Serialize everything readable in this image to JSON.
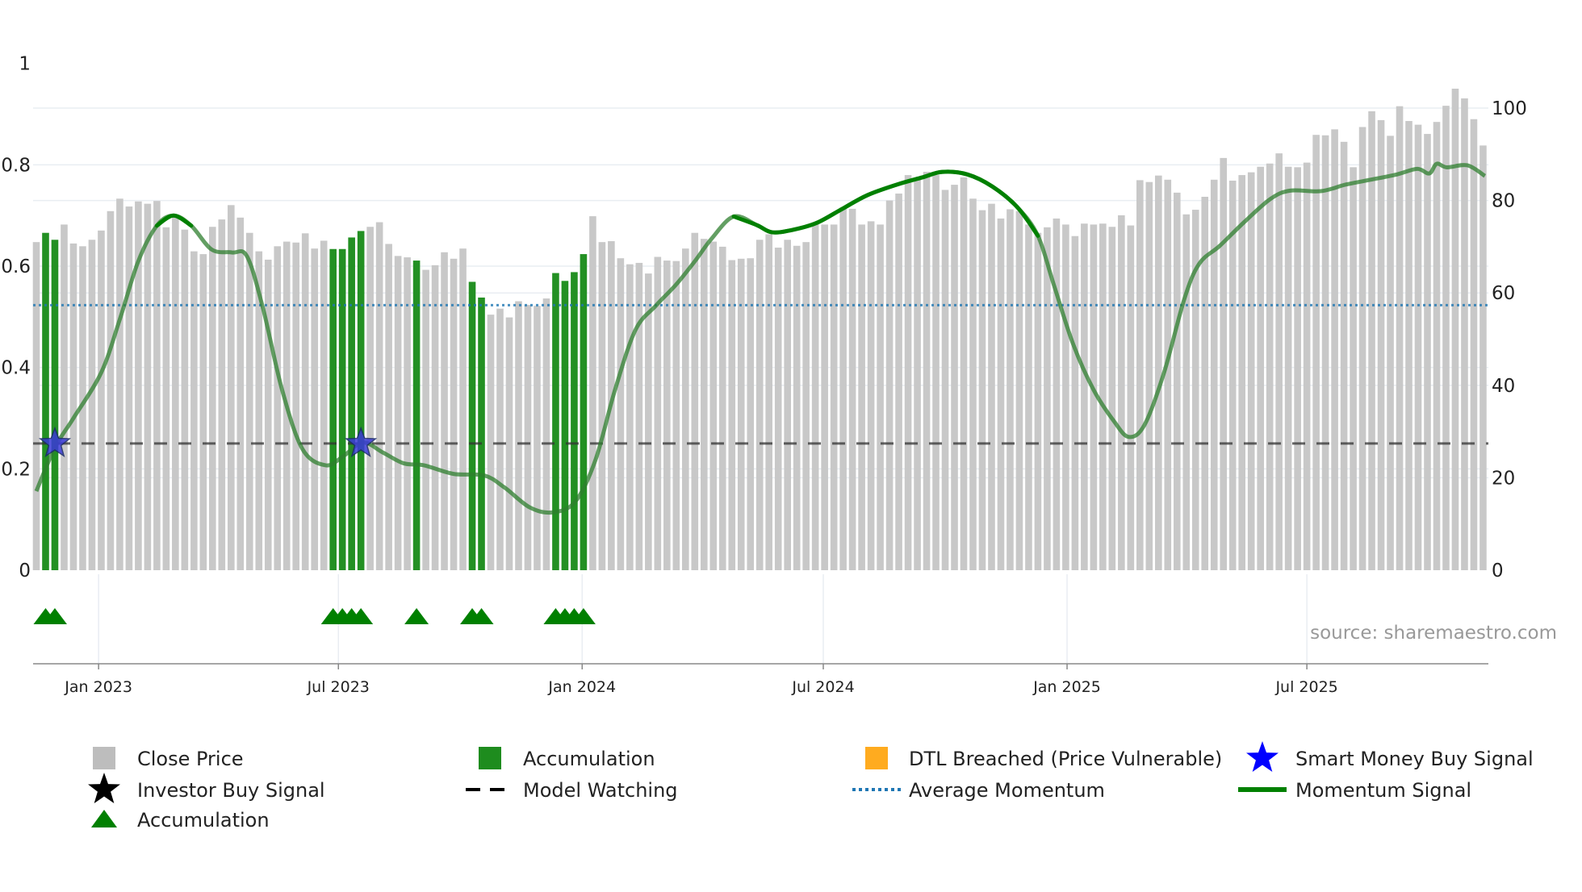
{
  "chart_data": {
    "type": "bar",
    "title": "",
    "source": "source: sharemaestro.com",
    "left_axis": {
      "range": [
        0,
        1
      ],
      "ticks": [
        "0",
        "0.2",
        "0.4",
        "0.6",
        "0.8",
        "1"
      ],
      "values": [
        0,
        0.2,
        0.4,
        0.6,
        0.8,
        1
      ]
    },
    "right_axis": {
      "range": [
        0,
        109.6
      ],
      "ticks": [
        "0",
        "20",
        "40",
        "60",
        "80",
        "100"
      ],
      "values": [
        0,
        20,
        40,
        60,
        80,
        100
      ]
    },
    "x_axis": {
      "first_week": "2022-11-15",
      "ticks": [
        {
          "label": "Jan 2023",
          "date": "2023-01-01"
        },
        {
          "label": "Jul 2023",
          "date": "2023-07-01"
        },
        {
          "label": "Jan 2024",
          "date": "2024-01-01"
        },
        {
          "label": "Jul 2024",
          "date": "2024-07-01"
        },
        {
          "label": "Jan 2025",
          "date": "2025-01-01"
        },
        {
          "label": "Jul 2025",
          "date": "2025-07-01"
        }
      ]
    },
    "close_price": [
      71,
      73,
      71.5,
      74.8,
      70.7,
      70.1,
      71.5,
      73.5,
      77.7,
      80.4,
      78.7,
      79.8,
      79.3,
      79.9,
      74.2,
      76.5,
      73.7,
      69,
      68.4,
      74.3,
      75.9,
      79,
      76.3,
      73,
      69,
      67.2,
      70.1,
      71.1,
      70.9,
      72.9,
      69.6,
      71.3,
      69.5,
      69.5,
      72,
      73.4,
      74.3,
      75.3,
      70.6,
      68,
      67.7,
      67,
      65,
      66,
      68.8,
      67.4,
      69.6,
      62.4,
      59,
      55.3,
      56.6,
      54.7,
      58.2,
      57.4,
      57.2,
      58.8,
      64.3,
      62.6,
      64.5,
      68.4,
      76.6,
      71,
      71.2,
      67.5,
      66.2,
      66.5,
      64.2,
      67.8,
      67,
      66.9,
      69.6,
      73,
      71.7,
      71.1,
      70,
      67.1,
      67.4,
      67.5,
      71.5,
      72.7,
      69.8,
      71.5,
      70.2,
      71,
      75,
      74.8,
      74.8,
      78.5,
      78.2,
      74.8,
      75.5,
      74.8,
      80,
      81.5,
      85.5,
      84.5,
      86.2,
      85.5,
      82.3,
      83.4,
      85,
      80.4,
      77.9,
      79.3,
      76.1,
      78.1,
      77.7,
      74.8,
      73,
      74.2,
      76.1,
      74.8,
      72.3,
      75,
      74.8,
      75,
      74.3,
      76.8,
      74.6,
      84.4,
      84,
      85.4,
      84.5,
      81.7,
      77,
      78,
      80.8,
      84.5,
      89.2,
      84.3,
      85.5,
      86.1,
      87.3,
      88,
      90.2,
      87.3,
      87.2,
      88.2,
      94.2,
      94.1,
      95.4,
      92.7,
      87.2,
      95.9,
      99.3,
      97.4,
      94,
      100.4,
      97.2,
      96.4,
      94.4,
      97,
      100.5,
      104.2,
      102.1,
      97.6,
      91.9
    ],
    "accumulation_weeks": [
      1,
      2,
      32,
      33,
      34,
      35,
      41,
      47,
      48,
      56,
      57,
      58,
      59
    ],
    "smart_money_buy_weeks": [
      2,
      35
    ],
    "investor_buy_weeks": [],
    "dtl_breached_weeks": [],
    "model_watching_level": 0.25,
    "average_momentum": 0.523,
    "momentum_signal": [
      [
        0,
        0.156
      ],
      [
        2,
        0.242
      ],
      [
        4,
        0.3
      ],
      [
        7,
        0.39
      ],
      [
        9,
        0.495
      ],
      [
        11,
        0.61
      ],
      [
        13,
        0.68
      ],
      [
        14.8,
        0.7
      ],
      [
        16.7,
        0.68
      ],
      [
        18.9,
        0.633
      ],
      [
        21.1,
        0.627
      ],
      [
        22.7,
        0.62
      ],
      [
        24.4,
        0.52
      ],
      [
        26.5,
        0.356
      ],
      [
        28.7,
        0.239
      ],
      [
        31.2,
        0.207
      ],
      [
        33.1,
        0.225
      ],
      [
        35.2,
        0.252
      ],
      [
        37.4,
        0.232
      ],
      [
        39.6,
        0.211
      ],
      [
        41.8,
        0.207
      ],
      [
        45,
        0.19
      ],
      [
        48.3,
        0.187
      ],
      [
        50.5,
        0.163
      ],
      [
        53.2,
        0.124
      ],
      [
        55.6,
        0.114
      ],
      [
        58.1,
        0.135
      ],
      [
        60.3,
        0.218
      ],
      [
        62.4,
        0.356
      ],
      [
        64.6,
        0.474
      ],
      [
        66.8,
        0.522
      ],
      [
        69,
        0.564
      ],
      [
        71.1,
        0.612
      ],
      [
        72.8,
        0.654
      ],
      [
        75.2,
        0.698
      ],
      [
        77.7,
        0.681
      ],
      [
        79.3,
        0.667
      ],
      [
        81.4,
        0.671
      ],
      [
        84.1,
        0.685
      ],
      [
        86.8,
        0.712
      ],
      [
        89.6,
        0.74
      ],
      [
        92.8,
        0.761
      ],
      [
        95.5,
        0.775
      ],
      [
        97.7,
        0.786
      ],
      [
        100.4,
        0.781
      ],
      [
        103.1,
        0.757
      ],
      [
        105.8,
        0.716
      ],
      [
        108,
        0.66
      ],
      [
        109.7,
        0.564
      ],
      [
        111.8,
        0.446
      ],
      [
        114,
        0.356
      ],
      [
        116.2,
        0.294
      ],
      [
        117.8,
        0.263
      ],
      [
        119.5,
        0.287
      ],
      [
        121.6,
        0.39
      ],
      [
        123.8,
        0.536
      ],
      [
        125.4,
        0.605
      ],
      [
        127.6,
        0.64
      ],
      [
        130.3,
        0.688
      ],
      [
        133.1,
        0.733
      ],
      [
        135.2,
        0.749
      ],
      [
        138.5,
        0.748
      ],
      [
        141.2,
        0.761
      ],
      [
        144,
        0.771
      ],
      [
        146.7,
        0.781
      ],
      [
        148.9,
        0.792
      ],
      [
        150.2,
        0.783
      ],
      [
        151,
        0.802
      ],
      [
        152.1,
        0.795
      ],
      [
        154.3,
        0.799
      ],
      [
        156.2,
        0.778
      ]
    ],
    "momentum_emphasis_ranges": [
      [
        12,
        17
      ],
      [
        73,
        109
      ]
    ],
    "legend": {
      "placement": "bottom",
      "items": [
        {
          "label": "Close Price",
          "symbol": "square",
          "color": "#bdbdbd"
        },
        {
          "label": "Accumulation",
          "symbol": "square",
          "color": "#1e8c1e"
        },
        {
          "label": "DTL Breached (Price Vulnerable)",
          "symbol": "square",
          "color": "#ffab1f"
        },
        {
          "label": "Smart Money Buy Signal",
          "symbol": "star",
          "color": "#0000ff"
        },
        {
          "label": "Investor Buy Signal",
          "symbol": "star",
          "color": "#000000"
        },
        {
          "label": "Model Watching",
          "symbol": "dash",
          "color": "#000000"
        },
        {
          "label": "Average Momentum",
          "symbol": "dot",
          "color": "#1f77b4"
        },
        {
          "label": "Momentum Signal",
          "symbol": "line",
          "color": "#008000"
        },
        {
          "label": "Accumulation",
          "symbol": "triangle",
          "color": "#008000"
        }
      ]
    },
    "colors": {
      "close": "#c8c8c8",
      "accum_bar": "#239023",
      "triangle": "#008000",
      "star": "#3a3ad8",
      "momentum": "#008000",
      "avg": "#1f77b4",
      "watch": "#333333",
      "grid": "#e9edf2"
    }
  }
}
